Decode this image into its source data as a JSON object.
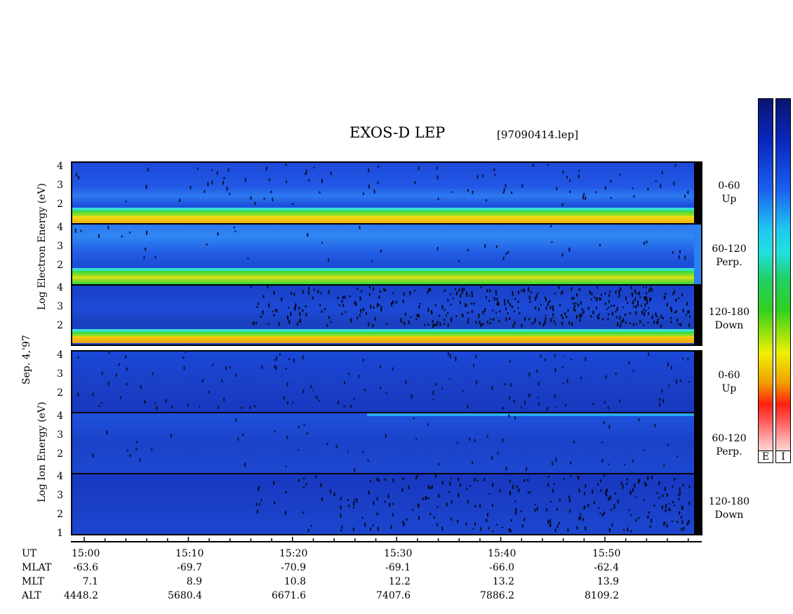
{
  "header": {
    "title": "EXOS-D LEP",
    "file": "[97090414.lep]"
  },
  "left_labels": {
    "electron": "Log  Electron  Energy (eV)",
    "ion": "Log   Ion   Energy (eV)",
    "date": "Sep. 4,'97"
  },
  "y_ticks": [
    "4",
    "3",
    "2"
  ],
  "y_ticks_low": [
    "4",
    "3",
    "2",
    "1"
  ],
  "pitch_bins": [
    {
      "range": "0-60",
      "dir": "Up"
    },
    {
      "range": "60-120",
      "dir": "Perp."
    },
    {
      "range": "120-180",
      "dir": "Down"
    }
  ],
  "colorbars": {
    "electron_label": "E",
    "ion_label": "I"
  },
  "table": {
    "row_labels": [
      "UT",
      "MLAT",
      "MLT",
      "ALT"
    ],
    "UT": [
      "15:00",
      "15:10",
      "15:20",
      "15:30",
      "15:40",
      "15:50"
    ],
    "MLAT": [
      "-63.6",
      "-69.7",
      "-70.9",
      "-69.1",
      "-66.0",
      "-62.4"
    ],
    "MLT": [
      "7.1",
      "8.9",
      "10.8",
      "12.2",
      "13.2",
      "13.9"
    ],
    "ALT": [
      "4448.2",
      "5680.4",
      "6671.6",
      "7407.6",
      "7886.2",
      "8109.2"
    ]
  },
  "chart_data": {
    "type": "heatmap",
    "title": "EXOS-D LEP",
    "xlabel": "UT",
    "ylabel": "Log Energy (eV)",
    "x": [
      "15:00",
      "15:10",
      "15:20",
      "15:30",
      "15:40",
      "15:50"
    ],
    "ylim": [
      1,
      4
    ],
    "panels": [
      {
        "species": "Electron",
        "pitch": "0-60",
        "direction": "Up"
      },
      {
        "species": "Electron",
        "pitch": "60-120",
        "direction": "Perp."
      },
      {
        "species": "Electron",
        "pitch": "120-180",
        "direction": "Down"
      },
      {
        "species": "Ion",
        "pitch": "0-60",
        "direction": "Up"
      },
      {
        "species": "Ion",
        "pitch": "60-120",
        "direction": "Perp."
      },
      {
        "species": "Ion",
        "pitch": "120-180",
        "direction": "Down"
      }
    ],
    "colors": {
      "low": "#0a14a0",
      "mid": "#2a6cf0",
      "cyan": "#20e0e0",
      "green": "#28d028",
      "yellow": "#f0f000",
      "red": "#ff1010"
    }
  }
}
